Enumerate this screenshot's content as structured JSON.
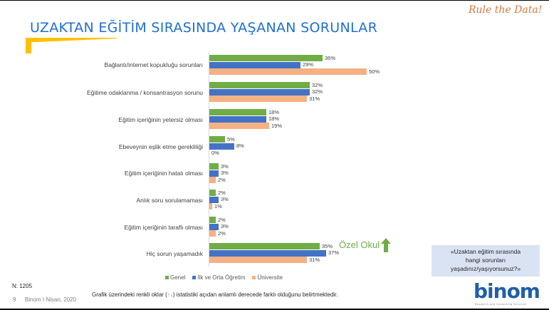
{
  "header": {
    "title": "UZAKTAN EĞİTİM SIRASINDA YAŞANAN SORUNLAR",
    "tagline": "Rule the Data!"
  },
  "colors": {
    "title": "#1f6fd6",
    "accent_yellow": "#ffc000",
    "genel": "#70ad47",
    "ilk_orta": "#4472c4",
    "universite": "#f4b183",
    "question_box": "#dae3f3",
    "tagline": "#d7773d"
  },
  "chart_data": {
    "type": "bar",
    "orientation": "horizontal",
    "title": "UZAKTAN EĞİTİM SIRASINDA YAŞANAN SORUNLAR",
    "xlabel": "",
    "ylabel": "",
    "xlim": [
      0,
      50
    ],
    "grid": false,
    "legend_position": "bottom",
    "value_format": "percent",
    "categories": [
      "Bağlantı/internet kopukluğu sorunları",
      "Eğitime odaklanma / konsantrasyon sorunu",
      "Eğitim içeriğinin yetersiz olması",
      "Ebeveynin eşlik etme gerekliliği",
      "Eğitim içeriğinin hatalı olması",
      "Anlık soru sorulamaması",
      "Eğitim içeriğinin taraflı olması",
      "Hiç sorun yaşamadık"
    ],
    "series": [
      {
        "name": "Genel",
        "color": "#70ad47",
        "values": [
          36,
          32,
          18,
          5,
          3,
          2,
          2,
          35
        ]
      },
      {
        "name": "İlk ve Orta Öğretim",
        "color": "#4472c4",
        "values": [
          29,
          32,
          18,
          8,
          3,
          3,
          3,
          37
        ]
      },
      {
        "name": "Üniversite",
        "color": "#f4b183",
        "values": [
          50,
          31,
          19,
          0,
          2,
          1,
          2,
          31
        ]
      }
    ],
    "annotations": [
      {
        "category": "Hiç sorun yaşamadık",
        "text": "Özel Okul",
        "icon": "arrow-up-icon",
        "color": "#70ad47"
      }
    ]
  },
  "labels": {
    "cat": [
      "Bağlantı/internet kopukluğu sorunları",
      "Eğitime odaklanma / konsantrasyon sorunu",
      "Eğitim içeriğinin yetersiz olması",
      "Ebeveynin eşlik etme gerekliliği",
      "Eğitim içeriğinin hatalı olması",
      "Anlık soru sorulamaması",
      "Eğitim içeriğinin taraflı olması",
      "Hiç sorun yaşamadık"
    ]
  },
  "legend": {
    "genel": "Genel",
    "ilk_orta": "İlk ve Orta Öğretim",
    "universite": "Üniversite"
  },
  "annotation": {
    "text": "Özel Okul"
  },
  "footer": {
    "sample": "N: 1205",
    "page": "9",
    "source": "Binom I Nisan, 2020",
    "note_prefix": "Grafik üzerindeki renkli oklar  (",
    "note_up": "↑",
    "note_down": "↓",
    "note_suffix": ") istatistiki açıdan anlamlı derecede farklı olduğunu belirtmektedir."
  },
  "question_box": {
    "line1": "«Uzaktan eğitim sırasında",
    "line2": "hangi sorunları",
    "line3": "yaşadınız/yaşıyorsunuz?»"
  },
  "logo": {
    "text": "binom",
    "subtitle": "Research and Consulting Services"
  }
}
